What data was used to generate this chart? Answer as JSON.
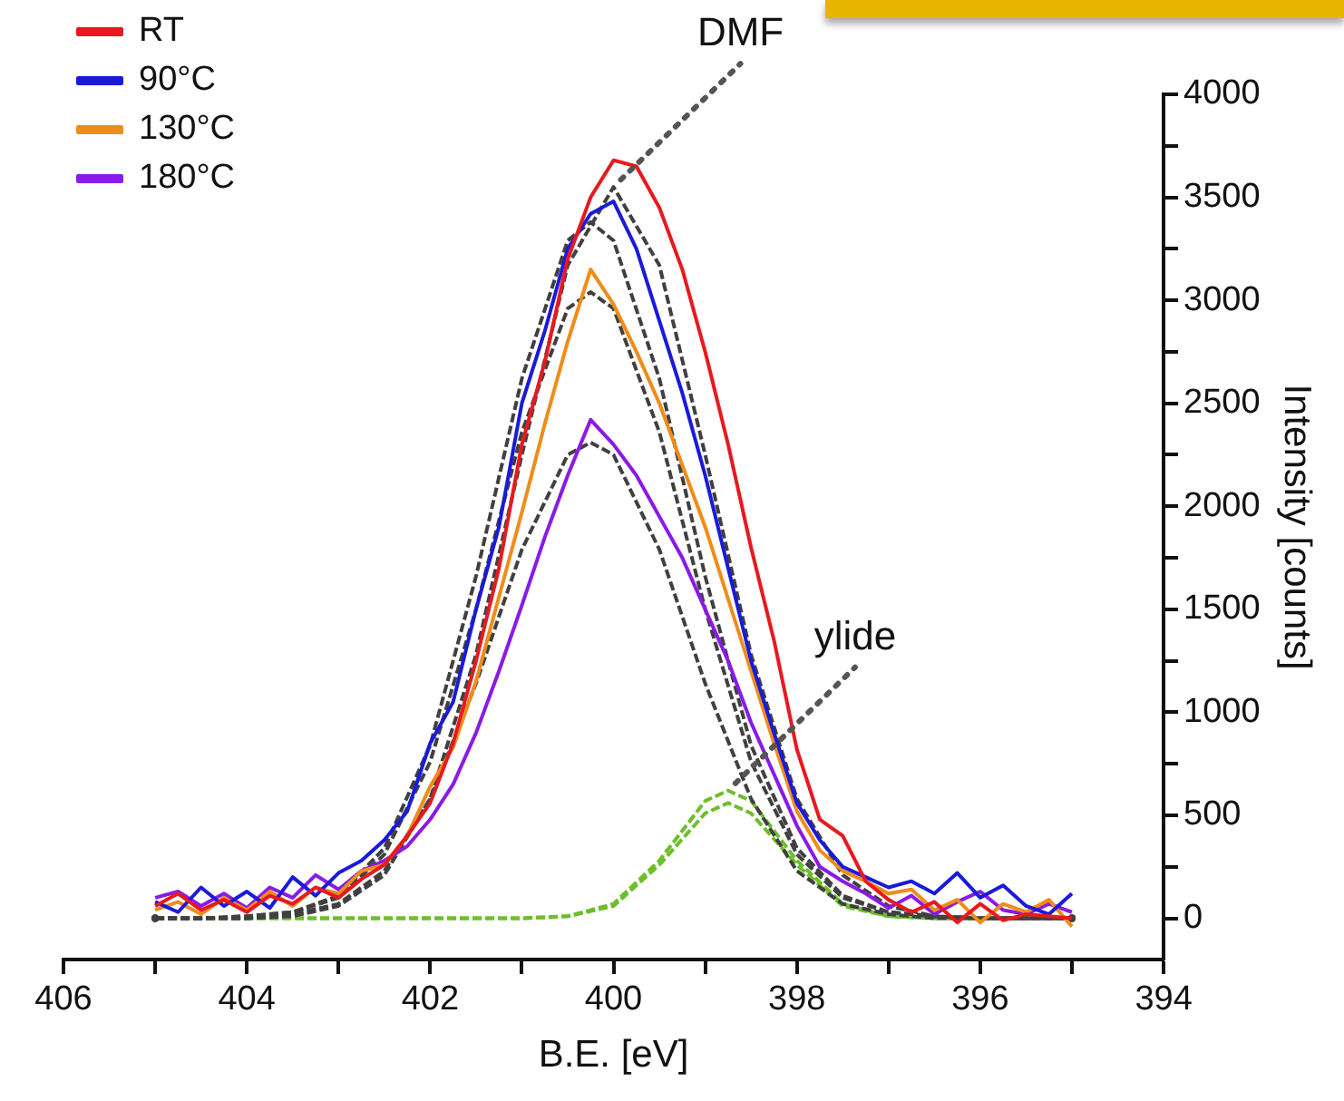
{
  "chart_data": {
    "type": "line",
    "xlabel": "B.E. [eV]",
    "ylabel": "Intensity [counts]",
    "x": [
      405,
      404.75,
      404.5,
      404.25,
      404,
      403.75,
      403.5,
      403.25,
      403,
      402.75,
      402.5,
      402.25,
      402,
      401.75,
      401.5,
      401.25,
      401,
      400.75,
      400.5,
      400.25,
      400,
      399.75,
      399.5,
      399.25,
      399,
      398.75,
      398.5,
      398.25,
      398,
      397.75,
      397.5,
      397.25,
      397,
      396.75,
      396.5,
      396.25,
      396,
      395.75,
      395.5,
      395.25,
      395
    ],
    "series": [
      {
        "name": "RT",
        "color": "#e8191e",
        "values": [
          60,
          120,
          40,
          90,
          30,
          110,
          70,
          150,
          100,
          190,
          260,
          400,
          560,
          850,
          1250,
          1700,
          2300,
          2700,
          3200,
          3500,
          3680,
          3650,
          3450,
          3150,
          2750,
          2300,
          1800,
          1350,
          820,
          480,
          400,
          180,
          90,
          30,
          80,
          -20,
          70,
          -10,
          20,
          10,
          0
        ]
      },
      {
        "name": "90°C",
        "color": "#1a1adb",
        "values": [
          80,
          30,
          150,
          60,
          130,
          50,
          200,
          110,
          220,
          280,
          380,
          520,
          850,
          1050,
          1500,
          1900,
          2500,
          2850,
          3250,
          3420,
          3480,
          3250,
          2900,
          2550,
          2150,
          1700,
          1250,
          900,
          560,
          380,
          250,
          200,
          150,
          180,
          120,
          220,
          100,
          160,
          60,
          20,
          120
        ]
      },
      {
        "name": "130°C",
        "color": "#f08c1a",
        "values": [
          40,
          80,
          20,
          100,
          40,
          130,
          60,
          150,
          120,
          230,
          260,
          400,
          640,
          830,
          1150,
          1560,
          1970,
          2400,
          2800,
          3150,
          2980,
          2750,
          2500,
          2200,
          1900,
          1550,
          1200,
          850,
          520,
          330,
          230,
          180,
          120,
          140,
          40,
          90,
          -20,
          70,
          30,
          90,
          -40
        ]
      },
      {
        "name": "180°C",
        "color": "#8a1ae6",
        "values": [
          100,
          130,
          60,
          120,
          50,
          150,
          100,
          210,
          140,
          230,
          280,
          350,
          480,
          650,
          900,
          1200,
          1520,
          1850,
          2150,
          2420,
          2300,
          2150,
          1950,
          1750,
          1500,
          1250,
          950,
          700,
          450,
          250,
          180,
          120,
          50,
          110,
          20,
          80,
          130,
          40,
          20,
          70,
          30
        ]
      },
      {
        "color": "#404040",
        "line_style": "dashed",
        "x": [
          405,
          404.5,
          404,
          403.5,
          403,
          402.5,
          402,
          401.5,
          401,
          400.5,
          400,
          399.5,
          399,
          398.5,
          398,
          397.5,
          397,
          396.5,
          396,
          395.5,
          395
        ],
        "values": [
          0,
          0,
          0,
          10,
          60,
          210,
          580,
          1280,
          2250,
          3170,
          3550,
          3170,
          2250,
          1280,
          580,
          210,
          60,
          10,
          0,
          0,
          0
        ]
      },
      {
        "color": "#404040",
        "line_style": "dashed",
        "x": [
          405,
          404.5,
          404,
          403.5,
          403,
          402.5,
          402,
          401.5,
          401,
          400.5,
          400.25,
          400,
          399.5,
          399,
          398.5,
          398,
          397.5,
          397,
          396.5,
          396,
          395.5,
          395
        ],
        "values": [
          0,
          0,
          10,
          30,
          110,
          340,
          840,
          1660,
          2620,
          3290,
          3380,
          3290,
          2620,
          1660,
          840,
          340,
          110,
          30,
          10,
          0,
          0,
          0
        ]
      },
      {
        "color": "#404040",
        "line_style": "dashed",
        "x": [
          405,
          404.5,
          404,
          403.5,
          403,
          402.5,
          402,
          401.5,
          401,
          400.5,
          400.25,
          400,
          399.5,
          399,
          398.5,
          398,
          397.5,
          397,
          396.5,
          396,
          395.5,
          395
        ],
        "values": [
          0,
          0,
          10,
          30,
          100,
          310,
          760,
          1500,
          2360,
          2960,
          3040,
          2960,
          2360,
          1500,
          760,
          310,
          100,
          30,
          10,
          0,
          0,
          0
        ]
      },
      {
        "color": "#404040",
        "line_style": "dashed",
        "x": [
          405,
          404.5,
          404,
          403.5,
          403,
          402.5,
          402,
          401.5,
          401,
          400.5,
          400.25,
          400,
          399.5,
          399,
          398.5,
          398,
          397.5,
          397,
          396.5,
          396,
          395.5,
          395
        ],
        "values": [
          0,
          0,
          0,
          20,
          70,
          230,
          580,
          1140,
          1790,
          2250,
          2310,
          2250,
          1790,
          1140,
          580,
          230,
          70,
          20,
          0,
          0,
          0,
          0
        ]
      },
      {
        "color": "#6cbf2a",
        "line_style": "dashed",
        "x": [
          405,
          404.5,
          404,
          403.5,
          403,
          402.5,
          402,
          401.5,
          401,
          400.5,
          400,
          399.5,
          399,
          398.75,
          398.5,
          398,
          397.5,
          397,
          396.5,
          396,
          395.5,
          395
        ],
        "values": [
          0,
          0,
          0,
          0,
          0,
          0,
          0,
          0,
          0,
          10,
          70,
          280,
          570,
          620,
          570,
          280,
          70,
          10,
          0,
          0,
          0,
          0
        ]
      },
      {
        "color": "#6cbf2a",
        "line_style": "dashed",
        "x": [
          405,
          404.5,
          404,
          403.5,
          403,
          402.5,
          402,
          401.5,
          401,
          400.5,
          400,
          399.5,
          399,
          398.75,
          398.5,
          398,
          397.5,
          397,
          396.5,
          396,
          395.5,
          395
        ],
        "values": [
          0,
          0,
          0,
          0,
          0,
          0,
          0,
          0,
          0,
          10,
          60,
          260,
          510,
          560,
          510,
          260,
          60,
          10,
          0,
          0,
          0,
          0
        ]
      }
    ],
    "annotations": [
      {
        "text": "DMF",
        "x": 400,
        "y": 3550
      },
      {
        "text": "ylide",
        "x": 398.75,
        "y": 620
      }
    ],
    "xlim": [
      406,
      394
    ],
    "xticks": [
      406,
      {
        "value": 405,
        "label": null
      },
      404,
      {
        "value": 403,
        "label": null
      },
      402,
      {
        "value": 401,
        "label": null
      },
      400,
      {
        "value": 399,
        "label": null
      },
      398,
      {
        "value": 397,
        "label": null
      },
      396,
      {
        "value": 395,
        "label": null
      },
      394
    ],
    "ylim": [
      -200,
      4000
    ],
    "yticks": [
      0,
      {
        "value": 250,
        "label": null
      },
      500,
      {
        "value": 750,
        "label": null
      },
      1000,
      {
        "value": 1250,
        "label": null
      },
      1500,
      {
        "value": 1750,
        "label": null
      },
      2000,
      {
        "value": 2250,
        "label": null
      },
      2500,
      {
        "value": 2750,
        "label": null
      },
      3000,
      {
        "value": 3250,
        "label": null
      },
      3500,
      {
        "value": 3750,
        "label": null
      },
      4000
    ],
    "grid": false,
    "legend": "top left",
    "marker": "none"
  }
}
